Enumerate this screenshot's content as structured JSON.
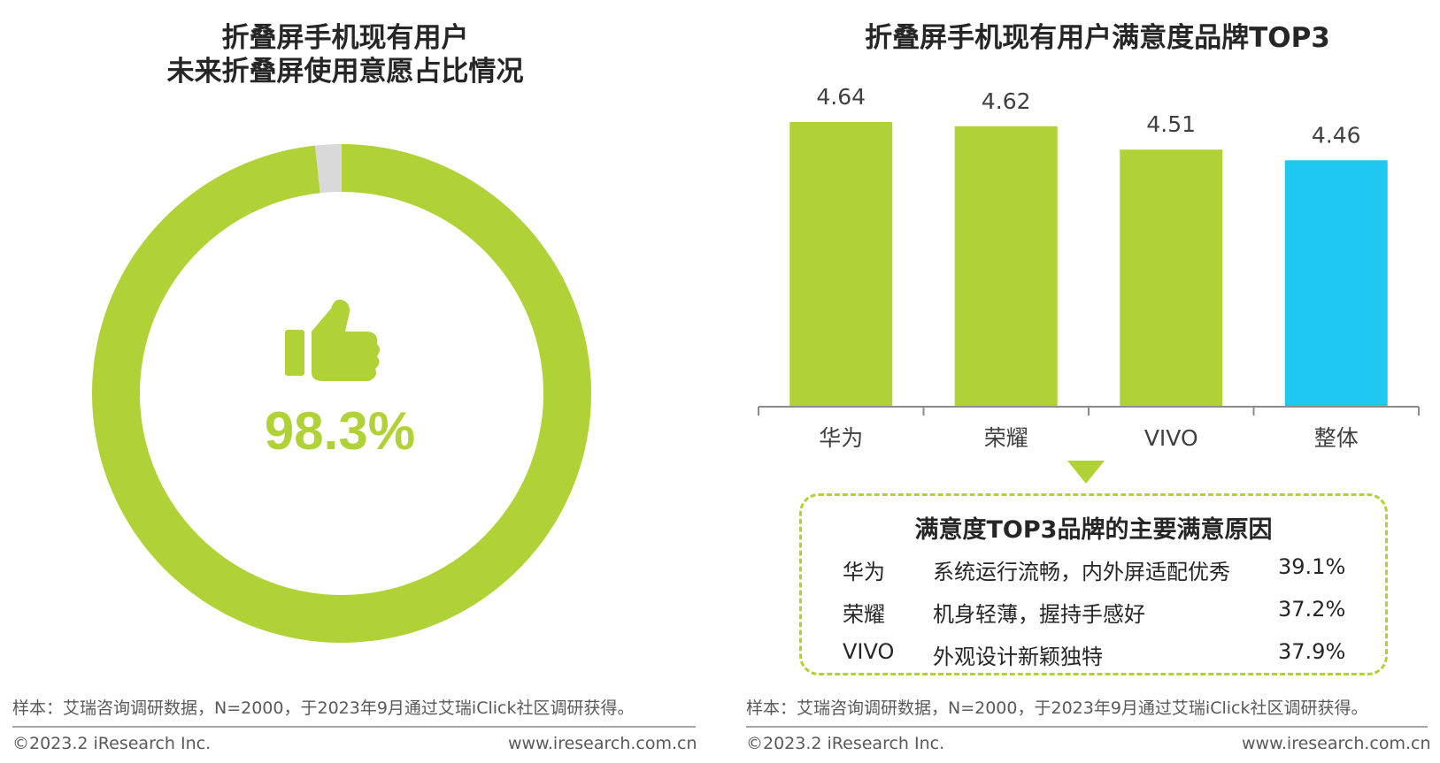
{
  "left_chart": {
    "title_line1": "折叠屏手机现有用户",
    "title_line2": "未来折叠屏使用意愿占比情况",
    "center_value": "98.3%",
    "icon": "thumbs-up-icon",
    "note": "样本：艾瑞咨询调研数据，N=2000，于2023年9月通过艾瑞iClick社区调研获得。"
  },
  "right_chart": {
    "title": "折叠屏手机现有用户满意度品牌TOP3",
    "note": "样本：艾瑞咨询调研数据，N=2000，于2023年9月通过艾瑞iClick社区调研获得。"
  },
  "reasons": {
    "title": "满意度TOP3品牌的主要满意原因",
    "rows": [
      {
        "brand": "华为",
        "reason": "系统运行流畅，内外屏适配优秀",
        "pct": "39.1%"
      },
      {
        "brand": "荣耀",
        "reason": "机身轻薄，握持手感好",
        "pct": "37.2%"
      },
      {
        "brand": "VIVO",
        "reason": "外观设计新颖独特",
        "pct": "37.9%"
      }
    ]
  },
  "footer": {
    "copyright": "©2023.2 iResearch Inc.",
    "url": "www.iresearch.com.cn"
  },
  "colors": {
    "green": "#b0d236",
    "blue": "#1ec8f0",
    "gray": "#d9d9d9"
  },
  "chart_data": [
    {
      "type": "pie",
      "style": "donut",
      "title": "折叠屏手机现有用户 未来折叠屏使用意愿占比情况",
      "slices": [
        {
          "value": 98.3,
          "color": "#b0d236"
        },
        {
          "value": 1.7,
          "color": "#d9d9d9"
        }
      ]
    },
    {
      "type": "bar",
      "title": "折叠屏手机现有用户满意度品牌TOP3",
      "categories": [
        "华为",
        "荣耀",
        "VIVO",
        "整体"
      ],
      "values": [
        4.64,
        4.62,
        4.51,
        4.46
      ],
      "labels": [
        "4.64",
        "4.62",
        "4.51",
        "4.46"
      ],
      "colors": [
        "#b0d236",
        "#b0d236",
        "#b0d236",
        "#1ec8f0"
      ]
    }
  ]
}
